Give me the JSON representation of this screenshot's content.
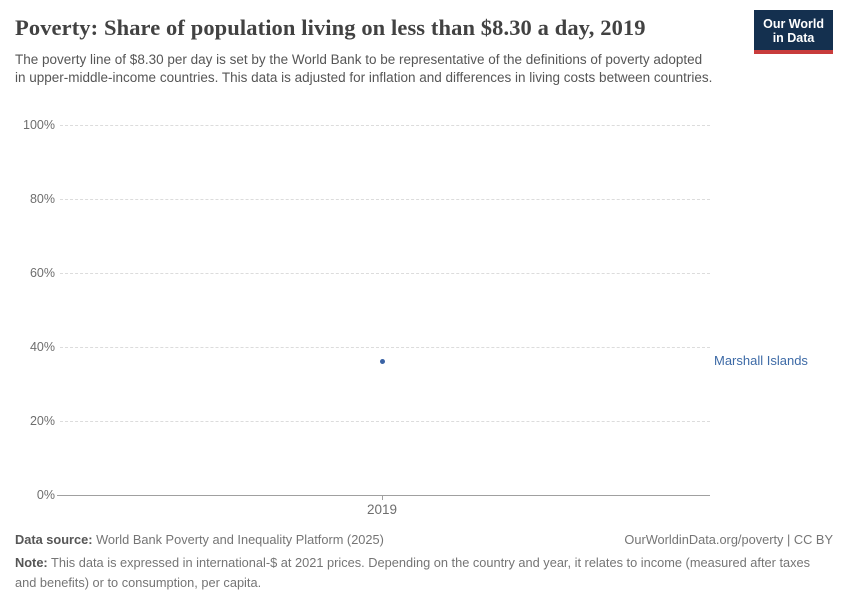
{
  "header": {
    "title": "Poverty: Share of population living on less than $8.30 a day, 2019",
    "subtitle": "The poverty line of $8.30 per day is set by the World Bank to be representative of the definitions of poverty adopted in upper-middle-income countries. This data is adjusted for inflation and differences in living costs between countries.",
    "logo_line1": "Our World",
    "logo_line2": "in Data",
    "logo_bg_color": "#14304f",
    "logo_accent_color": "#c83c3c"
  },
  "chart_data": {
    "type": "scatter",
    "title": "Poverty: Share of population living on less than $8.30 a day, 2019",
    "x": [
      2019
    ],
    "series": [
      {
        "name": "Marshall Islands",
        "values": [
          36.2
        ]
      }
    ],
    "xlabel": "",
    "ylabel": "",
    "ylim": [
      0,
      100
    ],
    "ytick_labels": [
      "100%",
      "80%",
      "60%",
      "40%",
      "20%",
      "0%"
    ],
    "xtick_labels": [
      "2019"
    ],
    "grid": "horizontal-dashed",
    "legend_position": "right-entity-label",
    "point_color": "#3a63a5",
    "entity_label_color": "#3d6aa6"
  },
  "footer": {
    "datasource_label": "Data source:",
    "datasource_value": " World Bank Poverty and Inequality Platform (2025)",
    "link_text": "OurWorldinData.org/poverty | CC BY",
    "note_label": "Note:",
    "note_value": " This data is expressed in international-$ at 2021 prices. Depending on the country and year, it relates to income (measured after taxes and benefits) or to consumption, per capita."
  }
}
